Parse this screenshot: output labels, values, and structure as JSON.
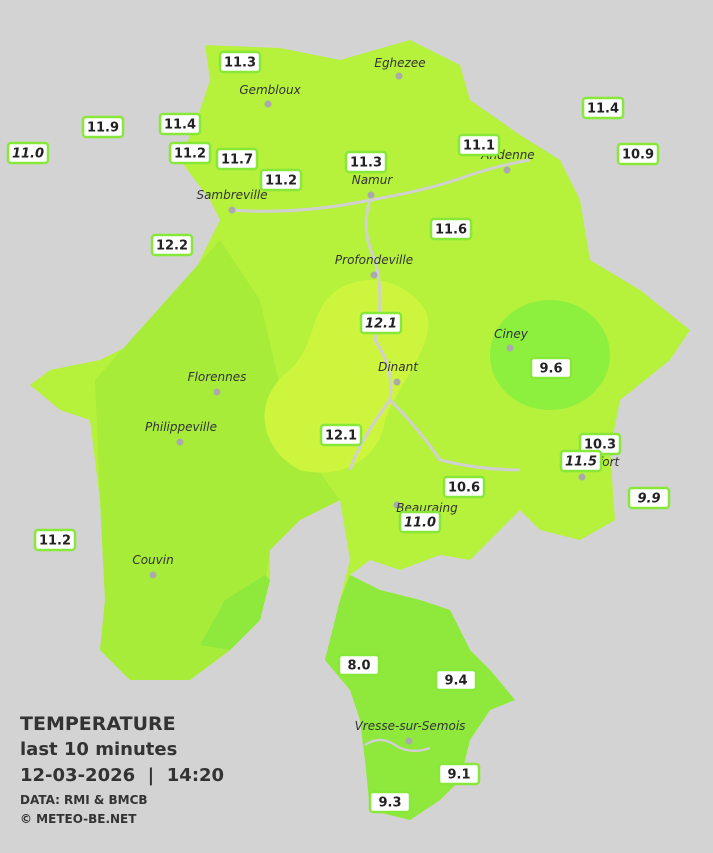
{
  "stations": [
    "11.3",
    "11.9",
    "11.0",
    "11.4",
    "11.2",
    "11.7",
    "11.2",
    "11.3",
    "11.1",
    "11.4",
    "10.9",
    "11.6",
    "12.2",
    "12.1",
    "9.6",
    "12.1",
    "10.3",
    "11.5",
    "10.6",
    "11.0",
    "9.9",
    "11.2",
    "8.0",
    "9.4",
    "9.1",
    "9.3"
  ],
  "towns": [
    "Eghezee",
    "Gembloux",
    "Andenne",
    "Namur",
    "Sambreville",
    "Profondeville",
    "Ciney",
    "Dinant",
    "Florennes",
    "Philippeville",
    "Rochefort",
    "Beauraing",
    "Couvin",
    "Vresse-sur-Semois"
  ],
  "legend": {
    "title": "TEMPERATURE",
    "subtitle": "last 10 minutes",
    "datetime": "12-03-2026  |  14:20",
    "source": "DATA: RMI & BMCB",
    "copyright": "© METEO-BE.NET"
  }
}
